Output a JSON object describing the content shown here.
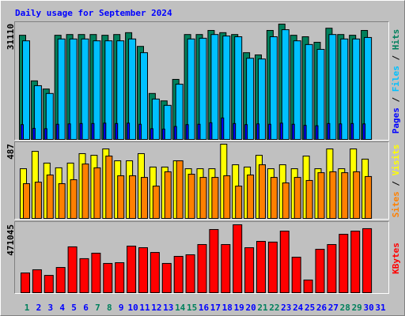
{
  "chart_data": {
    "type": "bar",
    "title": "Daily usage for September 2024",
    "categories": [
      "1",
      "2",
      "3",
      "4",
      "5",
      "6",
      "7",
      "8",
      "9",
      "10",
      "11",
      "12",
      "13",
      "14",
      "15",
      "16",
      "17",
      "18",
      "19",
      "20",
      "21",
      "22",
      "23",
      "24",
      "25",
      "26",
      "27",
      "28",
      "29",
      "30",
      "31"
    ],
    "category_colors": [
      "#00805c",
      "#0000ff",
      "#0000ff",
      "#0000ff",
      "#0000ff",
      "#0000ff",
      "#00805c",
      "#00805c",
      "#0000ff",
      "#0000ff",
      "#0000ff",
      "#0000ff",
      "#0000ff",
      "#00805c",
      "#00805c",
      "#0000ff",
      "#0000ff",
      "#0000ff",
      "#0000ff",
      "#0000ff",
      "#00805c",
      "#00805c",
      "#0000ff",
      "#0000ff",
      "#0000ff",
      "#0000ff",
      "#0000ff",
      "#00805c",
      "#00805c",
      "#0000ff",
      "#0000ff"
    ],
    "label_separator": " / ",
    "panels": [
      {
        "ylim": [
          0,
          31110
        ],
        "yticks": [
          31110
        ],
        "series": [
          {
            "name": "Pages",
            "color": "#0000ff",
            "values": [
              4000,
              3000,
              2900,
              4100,
              4200,
              4300,
              4300,
              4400,
              4300,
              4400,
              4100,
              2900,
              2800,
              3500,
              4000,
              4100,
              4500,
              5800,
              4300,
              4000,
              4200,
              4100,
              4400,
              4100,
              3800,
              3700,
              4300,
              4200,
              4300,
              4200,
              null
            ]
          },
          {
            "name": "Files",
            "color": "#00c0ff",
            "values": [
              26600,
              14500,
              12400,
              27100,
              27100,
              27100,
              26600,
              26600,
              26600,
              27100,
              23400,
              10900,
              9200,
              14900,
              27100,
              27300,
              28300,
              27900,
              27700,
              21900,
              21700,
              27700,
              29600,
              26600,
              25600,
              24300,
              28300,
              27100,
              27100,
              27500,
              null
            ]
          },
          {
            "name": "Hits",
            "color": "#00805c",
            "values": [
              28100,
              15800,
              13600,
              28100,
              28300,
              28300,
              28300,
              28100,
              28300,
              28800,
              25100,
              12400,
              10400,
              16200,
              28300,
              28300,
              29400,
              28800,
              28300,
              23400,
              22800,
              29400,
              31110,
              28100,
              27700,
              26200,
              30000,
              28300,
              28100,
              29400,
              null
            ]
          }
        ]
      },
      {
        "ylim": [
          0,
          487
        ],
        "yticks": [
          487
        ],
        "series": [
          {
            "name": "Sites",
            "color": "#ff8000",
            "values": [
              228,
              238,
              285,
              228,
              254,
              357,
              332,
              409,
              280,
              280,
              269,
              212,
              306,
              378,
              290,
              269,
              269,
              280,
              212,
              285,
              352,
              269,
              233,
              269,
              249,
              300,
              306,
              300,
              306,
              275,
              null
            ]
          },
          {
            "name": "Visits",
            "color": "#ffff00",
            "values": [
              326,
              440,
              363,
              332,
              363,
              425,
              414,
              456,
              378,
              378,
              425,
              337,
              337,
              378,
              326,
              326,
              326,
              487,
              352,
              337,
              414,
              326,
              352,
              326,
              409,
              326,
              456,
              326,
              456,
              389,
              null
            ]
          }
        ]
      },
      {
        "ylim": [
          0,
          471045
        ],
        "yticks": [
          471045
        ],
        "series": [
          {
            "name": "KBytes",
            "color": "#ff0000",
            "values": [
              137000,
              159000,
              120000,
              175000,
              318000,
              236000,
              274000,
              203000,
              208000,
              323000,
              312000,
              279000,
              203000,
              252000,
              263000,
              334000,
              438000,
              334000,
              471045,
              312000,
              356000,
              351000,
              427000,
              246000,
              88000,
              301000,
              334000,
              405000,
              427000,
              444000,
              null
            ]
          }
        ]
      }
    ]
  }
}
